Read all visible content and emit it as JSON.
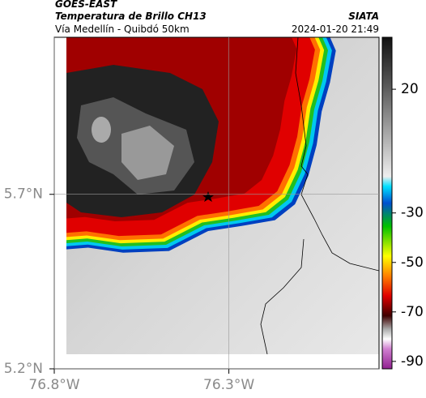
{
  "header": {
    "source": "GOES-EAST",
    "title": "Temperatura de Brillo CH13",
    "subtitle": "Vía Medellín - Quibdó 50km",
    "agency": "SIATA",
    "datetime": "2024-01-20 21:49"
  },
  "map": {
    "xlim": [
      -76.8,
      -75.87
    ],
    "ylim": [
      5.2,
      6.15
    ],
    "xticks": [
      {
        "value": -76.8,
        "label": "76.8°W"
      },
      {
        "value": -76.3,
        "label": "76.3°W"
      }
    ],
    "yticks": [
      {
        "value": 5.7,
        "label": "5.7°N"
      },
      {
        "value": 5.2,
        "label": "5.2°N"
      }
    ],
    "grid": true
  },
  "colorbar": {
    "lim": [
      -93,
      41
    ],
    "ticks": [
      20,
      -30,
      -50,
      -70,
      -90
    ]
  }
}
